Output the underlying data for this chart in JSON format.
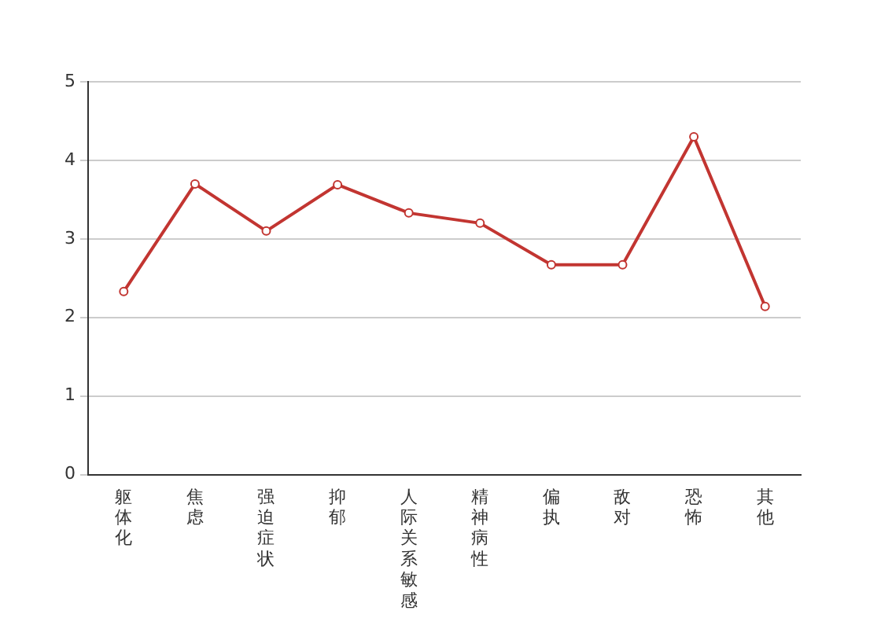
{
  "chart_data": {
    "type": "line",
    "categories": [
      "躯体化",
      "焦虑",
      "强迫症状",
      "抑郁",
      "人际关系敏感",
      "精神病性",
      "偏执",
      "敌对",
      "恐怖",
      "其他"
    ],
    "series": [
      {
        "color": "#c23531",
        "values": [
          2.33,
          3.7,
          3.1,
          3.69,
          3.33,
          3.2,
          2.67,
          2.67,
          4.3,
          2.14
        ]
      }
    ],
    "ylim": [
      0,
      5
    ],
    "yticks": [
      0,
      1,
      2,
      3,
      4,
      5
    ],
    "grid": "y",
    "legend": false,
    "marker": "circle",
    "line_style": "solid"
  }
}
